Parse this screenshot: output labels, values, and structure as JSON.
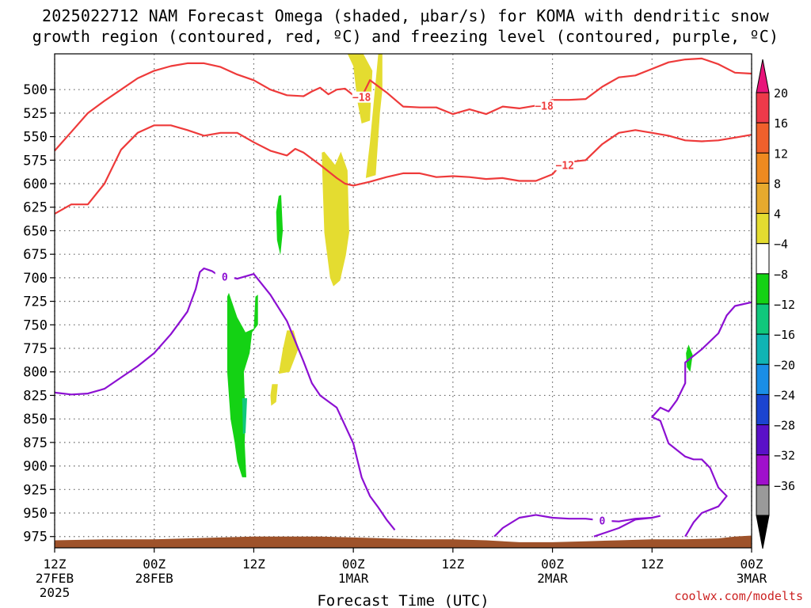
{
  "title_line1": "2025022712 NAM Forecast Omega (shaded, μbar/s) for KOMA with dendritic snow",
  "title_line2": "growth region (contoured, red, ºC) and freezing level (contoured, purple, ºC)",
  "credit": "coolwx.com/modelts",
  "chart_data": {
    "type": "time-height contour",
    "xlabel": "Forecast Time (UTC)",
    "ylabel": "",
    "x_range_hours": [
      0,
      84
    ],
    "y_range_hpa": [
      462,
      987
    ],
    "grid": true,
    "y_ticks": [
      500,
      525,
      550,
      575,
      600,
      625,
      650,
      675,
      700,
      725,
      750,
      775,
      800,
      825,
      850,
      875,
      900,
      925,
      950,
      975
    ],
    "x_ticks": [
      {
        "hour": 0,
        "lines": [
          "12Z",
          "27FEB",
          "2025"
        ]
      },
      {
        "hour": 12,
        "lines": [
          "00Z",
          "28FEB"
        ]
      },
      {
        "hour": 24,
        "lines": [
          "12Z"
        ]
      },
      {
        "hour": 36,
        "lines": [
          "00Z",
          "1MAR"
        ]
      },
      {
        "hour": 48,
        "lines": [
          "12Z"
        ]
      },
      {
        "hour": 60,
        "lines": [
          "00Z",
          "2MAR"
        ]
      },
      {
        "hour": 72,
        "lines": [
          "12Z"
        ]
      },
      {
        "hour": 84,
        "lines": [
          "00Z",
          "3MAR"
        ]
      }
    ],
    "colorbar": {
      "labels": [
        "20",
        "16",
        "12",
        "8",
        "4",
        "−4",
        "−8",
        "−12",
        "−16",
        "−20",
        "−24",
        "−28",
        "−32",
        "−36"
      ],
      "colors": [
        "#ee3a4a",
        "#f0602c",
        "#ee8a20",
        "#e6aa2e",
        "#e4dc30",
        "#ffffff",
        "#14d214",
        "#10c87c",
        "#10b4b4",
        "#1a8ee6",
        "#1c44d0",
        "#5a10c8",
        "#a010cc",
        "#9a9a9a"
      ],
      "top_arrow_color": "#e8147a",
      "bottom_arrow_color": "#000000"
    },
    "contours": [
      {
        "label": "−18",
        "color": "#ee3a3a",
        "points": [
          [
            0,
            565
          ],
          [
            2,
            545
          ],
          [
            4,
            525
          ],
          [
            6,
            512
          ],
          [
            8,
            500
          ],
          [
            10,
            488
          ],
          [
            12,
            480
          ],
          [
            14,
            475
          ],
          [
            16,
            472
          ],
          [
            18,
            472
          ],
          [
            20,
            476
          ],
          [
            22,
            484
          ],
          [
            24,
            490
          ],
          [
            26,
            500
          ],
          [
            28,
            506
          ],
          [
            30,
            507
          ],
          [
            31,
            502
          ],
          [
            32,
            498
          ],
          [
            33,
            505
          ],
          [
            34,
            500
          ],
          [
            35,
            499
          ],
          [
            36,
            506
          ],
          [
            37,
            508
          ],
          [
            38,
            490
          ],
          [
            40,
            503
          ],
          [
            42,
            518
          ],
          [
            44,
            519
          ],
          [
            46,
            519
          ],
          [
            48,
            526
          ],
          [
            50,
            521
          ],
          [
            52,
            526
          ],
          [
            54,
            518
          ],
          [
            56,
            520
          ],
          [
            58,
            517
          ],
          [
            60,
            511
          ],
          [
            62,
            511
          ],
          [
            64,
            510
          ],
          [
            66,
            497
          ],
          [
            68,
            487
          ],
          [
            70,
            485
          ],
          [
            72,
            478
          ],
          [
            74,
            471
          ],
          [
            76,
            468
          ],
          [
            78,
            467
          ],
          [
            80,
            473
          ],
          [
            82,
            482
          ],
          [
            84,
            483
          ]
        ],
        "labels_at_hours": [
          37,
          59
        ]
      },
      {
        "label": "−12",
        "color": "#ee3a3a",
        "points": [
          [
            0,
            632
          ],
          [
            2,
            622
          ],
          [
            4,
            622
          ],
          [
            6,
            600
          ],
          [
            8,
            564
          ],
          [
            10,
            546
          ],
          [
            12,
            538
          ],
          [
            14,
            538
          ],
          [
            16,
            543
          ],
          [
            18,
            549
          ],
          [
            20,
            546
          ],
          [
            22,
            546
          ],
          [
            24,
            556
          ],
          [
            26,
            565
          ],
          [
            28,
            570
          ],
          [
            29,
            563
          ],
          [
            30,
            567
          ],
          [
            32,
            580
          ],
          [
            34,
            594
          ],
          [
            35,
            600
          ],
          [
            36,
            602
          ],
          [
            38,
            598
          ],
          [
            40,
            593
          ],
          [
            42,
            589
          ],
          [
            44,
            589
          ],
          [
            46,
            593
          ],
          [
            48,
            592
          ],
          [
            50,
            593
          ],
          [
            52,
            595
          ],
          [
            54,
            594
          ],
          [
            56,
            597
          ],
          [
            58,
            597
          ],
          [
            60,
            590
          ],
          [
            61,
            580
          ],
          [
            62,
            577
          ],
          [
            64,
            575
          ],
          [
            66,
            558
          ],
          [
            68,
            546
          ],
          [
            70,
            543
          ],
          [
            72,
            546
          ],
          [
            74,
            549
          ],
          [
            76,
            554
          ],
          [
            78,
            555
          ],
          [
            80,
            554
          ],
          [
            82,
            551
          ],
          [
            84,
            548
          ]
        ],
        "labels_at_hours": [
          61.5
        ]
      },
      {
        "label": "0",
        "color": "#8c10d2",
        "points": [
          [
            0,
            822
          ],
          [
            2,
            824
          ],
          [
            4,
            823
          ],
          [
            6,
            818
          ],
          [
            8,
            806
          ],
          [
            10,
            794
          ],
          [
            12,
            780
          ],
          [
            14,
            760
          ],
          [
            16,
            736
          ],
          [
            17,
            712
          ],
          [
            17.5,
            694
          ],
          [
            18,
            690
          ],
          [
            19,
            693
          ],
          [
            20,
            699
          ],
          [
            21,
            699
          ],
          [
            22,
            701
          ],
          [
            24,
            696
          ],
          [
            26,
            718
          ],
          [
            28,
            746
          ],
          [
            30,
            789
          ],
          [
            31,
            812
          ],
          [
            32,
            825
          ],
          [
            34,
            838
          ],
          [
            36,
            876
          ],
          [
            37,
            912
          ],
          [
            38,
            932
          ],
          [
            39,
            944
          ],
          [
            40,
            957
          ],
          [
            41,
            968
          ]
        ],
        "labels_at_hours": [
          20.5
        ]
      },
      {
        "label": "0",
        "color": "#8c10d2",
        "points": [
          [
            53,
            975
          ],
          [
            54,
            966
          ],
          [
            56,
            955
          ],
          [
            58,
            952
          ],
          [
            60,
            955
          ],
          [
            62,
            956
          ],
          [
            64,
            956
          ],
          [
            66,
            958
          ],
          [
            68,
            959
          ],
          [
            70,
            956
          ],
          [
            72,
            955
          ]
        ],
        "labels_at_hours": [
          66
        ]
      },
      {
        "label": "",
        "color": "#8c10d2",
        "points": [
          [
            65,
            975
          ],
          [
            68,
            966
          ],
          [
            70,
            957
          ],
          [
            72,
            955
          ],
          [
            73,
            953
          ]
        ]
      },
      {
        "label": "",
        "color": "#8c10d2",
        "points": [
          [
            76,
            975
          ],
          [
            77,
            960
          ],
          [
            78,
            950
          ],
          [
            80,
            943
          ],
          [
            81,
            932
          ],
          [
            80,
            923
          ],
          [
            79,
            902
          ],
          [
            78,
            893
          ],
          [
            77,
            893
          ],
          [
            76,
            890
          ],
          [
            74,
            876
          ],
          [
            73,
            852
          ],
          [
            72,
            848
          ],
          [
            73,
            838
          ],
          [
            74,
            842
          ],
          [
            75,
            830
          ],
          [
            76,
            812
          ],
          [
            76,
            790
          ],
          [
            78,
            776
          ],
          [
            80,
            759
          ],
          [
            81,
            740
          ],
          [
            82,
            730
          ],
          [
            84,
            726
          ]
        ]
      }
    ],
    "omega_regions": [
      {
        "bin": "4..8",
        "color": "#e4dc30",
        "points": [
          [
            35.3,
            462
          ],
          [
            36,
            475
          ],
          [
            36.5,
            513
          ],
          [
            37,
            536
          ],
          [
            38,
            533
          ],
          [
            38.3,
            480
          ],
          [
            37.2,
            462
          ]
        ]
      },
      {
        "bin": "4..8",
        "color": "#e4dc30",
        "points": [
          [
            39,
            462
          ],
          [
            39.5,
            462
          ],
          [
            39.5,
            500
          ],
          [
            39.2,
            525
          ],
          [
            38.7,
            591
          ],
          [
            37.5,
            594
          ],
          [
            38,
            556
          ]
        ]
      },
      {
        "bin": "4..8",
        "color": "#e4dc30",
        "points": [
          [
            32.2,
            567
          ],
          [
            32.5,
            566
          ],
          [
            33.8,
            580
          ],
          [
            34.5,
            566
          ],
          [
            35.3,
            586
          ],
          [
            35.5,
            652
          ],
          [
            35.1,
            676
          ],
          [
            34.4,
            703
          ],
          [
            33.6,
            709
          ],
          [
            33.2,
            700
          ],
          [
            32.5,
            652
          ],
          [
            32.3,
            600
          ]
        ]
      },
      {
        "bin": "4..8",
        "color": "#e4dc30",
        "points": [
          [
            28,
            756
          ],
          [
            28.8,
            756
          ],
          [
            29.4,
            775
          ],
          [
            28.3,
            800
          ],
          [
            27,
            802
          ],
          [
            27.5,
            776
          ]
        ]
      },
      {
        "bin": "4..8",
        "color": "#e4dc30",
        "points": [
          [
            26.2,
            813
          ],
          [
            26.9,
            813
          ],
          [
            26.7,
            832
          ],
          [
            26.1,
            836
          ],
          [
            26,
            825
          ]
        ]
      },
      {
        "bin": "-8..-4",
        "color": "#14d214",
        "points": [
          [
            27,
            613
          ],
          [
            27.3,
            612
          ],
          [
            27.5,
            650
          ],
          [
            27.2,
            676
          ],
          [
            26.8,
            660
          ],
          [
            26.7,
            630
          ]
        ]
      },
      {
        "bin": "-8..-4",
        "color": "#14d214",
        "points": [
          [
            21,
            716
          ],
          [
            22,
            742
          ],
          [
            23,
            758
          ],
          [
            24,
            754
          ],
          [
            24.2,
            720
          ],
          [
            24.5,
            718
          ],
          [
            24.5,
            750
          ],
          [
            23.8,
            758
          ],
          [
            23.5,
            780
          ],
          [
            22.8,
            800
          ],
          [
            23,
            850
          ],
          [
            22.9,
            875
          ],
          [
            23.1,
            912
          ],
          [
            22.6,
            912
          ],
          [
            22,
            895
          ],
          [
            21.7,
            875
          ],
          [
            21.2,
            850
          ],
          [
            20.8,
            800
          ],
          [
            20.8,
            720
          ]
        ]
      },
      {
        "bin": "-12..-8",
        "color": "#10c87c",
        "points": [
          [
            22.6,
            828
          ],
          [
            23.2,
            828
          ],
          [
            23,
            865
          ],
          [
            22.7,
            866
          ]
        ]
      },
      {
        "bin": "-8..-4",
        "color": "#14d214",
        "points": [
          [
            76.4,
            771
          ],
          [
            76.9,
            782
          ],
          [
            76.6,
            800
          ],
          [
            76.2,
            795
          ],
          [
            76.1,
            780
          ]
        ]
      }
    ],
    "terrain_color": "#9e522a"
  }
}
